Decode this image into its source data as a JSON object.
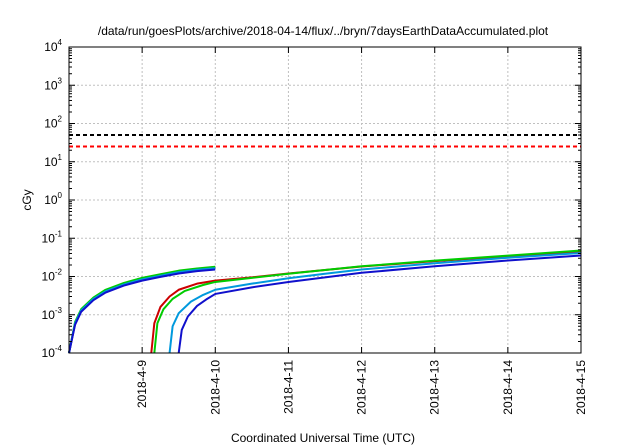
{
  "chart_data": {
    "type": "line",
    "title": "/data/run/goesPlots/archive/2018-04-14/flux/../bryn/7daysEarthDataAccumulated.plot",
    "xlabel": "Coordinated Universal Time (UTC)",
    "ylabel": "cGy",
    "y_scale": "log",
    "ylim": [
      0.0001,
      10000
    ],
    "xlim": [
      "2018-04-08 00:00",
      "2018-04-15 00:00"
    ],
    "x_ticks": [
      "2018-4-9",
      "2018-4-10",
      "2018-4-11",
      "2018-4-12",
      "2018-4-13",
      "2018-4-14",
      "2018-4-15"
    ],
    "y_ticks": [
      {
        "base": "10",
        "exp": "-4"
      },
      {
        "base": "10",
        "exp": "-3"
      },
      {
        "base": "10",
        "exp": "-2"
      },
      {
        "base": "10",
        "exp": "-1"
      },
      {
        "base": "10",
        "exp": "0"
      },
      {
        "base": "10",
        "exp": "1"
      },
      {
        "base": "10",
        "exp": "2"
      },
      {
        "base": "10",
        "exp": "3"
      },
      {
        "base": "10",
        "exp": "4"
      }
    ],
    "grid": true,
    "thresholds": [
      {
        "value": 50,
        "color": "#000000",
        "style": "dashed"
      },
      {
        "value": 25,
        "color": "#ff0000",
        "style": "dashed"
      }
    ],
    "series": [
      {
        "color": "#cc0000",
        "segments": [
          [
            [
              "2018-04-08 00:00",
              0.0001
            ],
            [
              "2018-04-08 02:00",
              0.0006
            ],
            [
              "2018-04-08 04:00",
              0.0013
            ],
            [
              "2018-04-08 08:00",
              0.0026
            ],
            [
              "2018-04-08 12:00",
              0.0042
            ],
            [
              "2018-04-08 18:00",
              0.0065
            ],
            [
              "2018-04-09 00:00",
              0.0088
            ],
            [
              "2018-04-09 06:00",
              0.011
            ],
            [
              "2018-04-09 12:00",
              0.0135
            ],
            [
              "2018-04-09 18:00",
              0.0155
            ],
            [
              "2018-04-10 00:00",
              0.0172
            ]
          ],
          [
            [
              "2018-04-09 03:00",
              0.0001
            ],
            [
              "2018-04-09 04:00",
              0.0006
            ],
            [
              "2018-04-09 06:00",
              0.0016
            ],
            [
              "2018-04-09 09:00",
              0.003
            ],
            [
              "2018-04-09 12:00",
              0.0045
            ],
            [
              "2018-04-09 18:00",
              0.0065
            ],
            [
              "2018-04-10 00:00",
              0.0078
            ],
            [
              "2018-04-10 12:00",
              0.0095
            ],
            [
              "2018-04-11 00:00",
              0.012
            ],
            [
              "2018-04-11 12:00",
              0.0148
            ],
            [
              "2018-04-12 00:00",
              0.0182
            ],
            [
              "2018-04-13 00:00",
              0.0252
            ],
            [
              "2018-04-14 00:00",
              0.0335
            ],
            [
              "2018-04-15 00:00",
              0.0448
            ]
          ]
        ]
      },
      {
        "color": "#00cc00",
        "segments": [
          [
            [
              "2018-04-08 00:00",
              0.0001
            ],
            [
              "2018-04-08 02:00",
              0.00065
            ],
            [
              "2018-04-08 04:00",
              0.0014
            ],
            [
              "2018-04-08 08:00",
              0.0028
            ],
            [
              "2018-04-08 12:00",
              0.0045
            ],
            [
              "2018-04-08 18:00",
              0.0068
            ],
            [
              "2018-04-09 00:00",
              0.0092
            ],
            [
              "2018-04-09 06:00",
              0.0115
            ],
            [
              "2018-04-09 12:00",
              0.0142
            ],
            [
              "2018-04-09 18:00",
              0.0162
            ],
            [
              "2018-04-10 00:00",
              0.018
            ]
          ],
          [
            [
              "2018-04-09 04:00",
              0.0001
            ],
            [
              "2018-04-09 05:00",
              0.0006
            ],
            [
              "2018-04-09 07:00",
              0.0014
            ],
            [
              "2018-04-09 10:00",
              0.0026
            ],
            [
              "2018-04-09 14:00",
              0.0042
            ],
            [
              "2018-04-09 20:00",
              0.006
            ],
            [
              "2018-04-10 00:00",
              0.0072
            ],
            [
              "2018-04-10 12:00",
              0.0092
            ],
            [
              "2018-04-11 00:00",
              0.0118
            ],
            [
              "2018-04-11 12:00",
              0.0148
            ],
            [
              "2018-04-12 00:00",
              0.0185
            ],
            [
              "2018-04-13 00:00",
              0.026
            ],
            [
              "2018-04-14 00:00",
              0.0352
            ],
            [
              "2018-04-15 00:00",
              0.048
            ]
          ]
        ]
      },
      {
        "color": "#0099dd",
        "segments": [
          [
            [
              "2018-04-08 00:00",
              0.0001
            ],
            [
              "2018-04-08 02:00",
              0.0006
            ],
            [
              "2018-04-08 04:00",
              0.0013
            ],
            [
              "2018-04-08 08:00",
              0.0026
            ],
            [
              "2018-04-08 12:00",
              0.0041
            ],
            [
              "2018-04-08 18:00",
              0.0062
            ],
            [
              "2018-04-09 00:00",
              0.0084
            ],
            [
              "2018-04-09 06:00",
              0.0105
            ],
            [
              "2018-04-09 12:00",
              0.013
            ],
            [
              "2018-04-09 18:00",
              0.015
            ],
            [
              "2018-04-10 00:00",
              0.0165
            ]
          ],
          [
            [
              "2018-04-09 09:00",
              0.0001
            ],
            [
              "2018-04-09 10:00",
              0.0005
            ],
            [
              "2018-04-09 12:00",
              0.0011
            ],
            [
              "2018-04-09 16:00",
              0.0022
            ],
            [
              "2018-04-09 20:00",
              0.0033
            ],
            [
              "2018-04-10 00:00",
              0.0045
            ],
            [
              "2018-04-10 12:00",
              0.0065
            ],
            [
              "2018-04-11 00:00",
              0.009
            ],
            [
              "2018-04-11 12:00",
              0.0118
            ],
            [
              "2018-04-12 00:00",
              0.0152
            ],
            [
              "2018-04-13 00:00",
              0.0222
            ],
            [
              "2018-04-14 00:00",
              0.031
            ],
            [
              "2018-04-15 00:00",
              0.0412
            ]
          ]
        ]
      },
      {
        "color": "#1010cc",
        "segments": [
          [
            [
              "2018-04-08 00:00",
              0.0001
            ],
            [
              "2018-04-08 02:00",
              0.00055
            ],
            [
              "2018-04-08 04:00",
              0.0012
            ],
            [
              "2018-04-08 08:00",
              0.0024
            ],
            [
              "2018-04-08 12:00",
              0.0038
            ],
            [
              "2018-04-08 18:00",
              0.0058
            ],
            [
              "2018-04-09 00:00",
              0.0078
            ],
            [
              "2018-04-09 06:00",
              0.0098
            ],
            [
              "2018-04-09 12:00",
              0.012
            ],
            [
              "2018-04-09 18:00",
              0.0138
            ],
            [
              "2018-04-10 00:00",
              0.0152
            ]
          ],
          [
            [
              "2018-04-09 12:00",
              0.0001
            ],
            [
              "2018-04-09 13:00",
              0.0004
            ],
            [
              "2018-04-09 15:00",
              0.0009
            ],
            [
              "2018-04-09 18:00",
              0.0017
            ],
            [
              "2018-04-09 21:00",
              0.0025
            ],
            [
              "2018-04-10 00:00",
              0.0035
            ],
            [
              "2018-04-10 12:00",
              0.0052
            ],
            [
              "2018-04-11 00:00",
              0.0072
            ],
            [
              "2018-04-11 12:00",
              0.0095
            ],
            [
              "2018-04-12 00:00",
              0.0125
            ],
            [
              "2018-04-13 00:00",
              0.0185
            ],
            [
              "2018-04-14 00:00",
              0.0262
            ],
            [
              "2018-04-15 00:00",
              0.0355
            ]
          ]
        ]
      }
    ]
  }
}
